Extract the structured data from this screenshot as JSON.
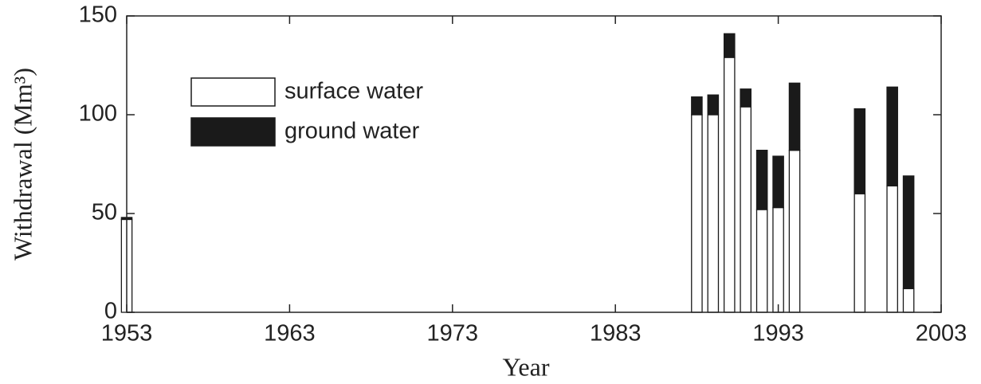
{
  "chart_data": {
    "type": "stacked-bar",
    "x_label": "Year",
    "y_label": "Withdrawal (Mm³)",
    "x": [
      1953,
      1988,
      1989,
      1990,
      1991,
      1992,
      1993,
      1994,
      1998,
      2000,
      2001
    ],
    "series": [
      {
        "name": "surface water",
        "color": "#ffffff",
        "values": [
          47,
          100,
          100,
          129,
          104,
          52,
          53,
          82,
          60,
          64,
          12
        ]
      },
      {
        "name": "ground water",
        "color": "#1a1a1a",
        "values": [
          1,
          9,
          10,
          12,
          9,
          30,
          26,
          34,
          43,
          50,
          57
        ]
      }
    ],
    "xlim": [
      1953,
      2003
    ],
    "xticks": [
      1953,
      1963,
      1973,
      1983,
      1993,
      2003
    ],
    "ylim": [
      0,
      150
    ],
    "yticks": [
      0,
      50,
      100,
      150
    ],
    "box": true,
    "legend": "upper-left"
  }
}
